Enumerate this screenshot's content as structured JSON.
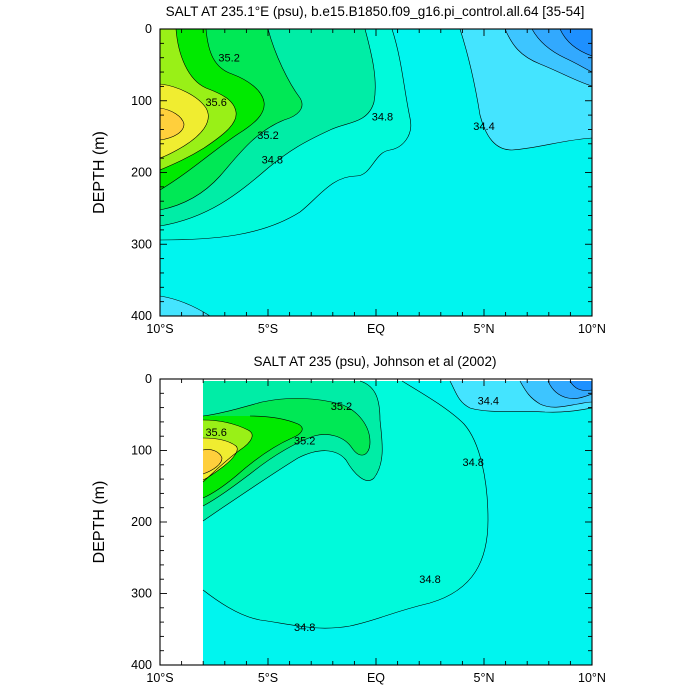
{
  "chart_data": [
    {
      "type": "contour",
      "title": "SALT AT 235.1°E (psu), b.e15.B1850.f09_g16.pi_control.all.64 [35-54]",
      "ylabel": "DEPTH (m)",
      "xlabel": "",
      "xlim": [
        -10,
        10
      ],
      "ylim": [
        400,
        0
      ],
      "y_reversed": true,
      "x_ticks": [
        {
          "value": -10,
          "label": "10°S"
        },
        {
          "value": -5,
          "label": "5°S"
        },
        {
          "value": 0,
          "label": "EQ"
        },
        {
          "value": 5,
          "label": "5°N"
        },
        {
          "value": 10,
          "label": "10°N"
        }
      ],
      "y_ticks": [
        0,
        100,
        200,
        300,
        400
      ],
      "contour_labels": [
        {
          "text": "35.2",
          "lat": -6.8,
          "depth": 40
        },
        {
          "text": "35.6",
          "lat": -7.4,
          "depth": 102
        },
        {
          "text": "35.2",
          "lat": -5.0,
          "depth": 148
        },
        {
          "text": "34.8",
          "lat": -4.8,
          "depth": 182
        },
        {
          "text": "34.8",
          "lat": 0.3,
          "depth": 122
        },
        {
          "text": "34.4",
          "lat": 5.0,
          "depth": 135
        }
      ],
      "colors": {
        "c33_8": "#1e90ff",
        "c34_0": "#32a9fe",
        "c34_2": "#3dc5ff",
        "c34_4": "#44e4ff",
        "c34_6": "#00f5ef",
        "c34_8": "#00fadb",
        "c35_0": "#00eda6",
        "c35_2": "#00e855",
        "c35_4": "#00ea00",
        "c35_6": "#99f017",
        "c35_8": "#f0ed30",
        "c36_0": "#ffcf3c"
      }
    },
    {
      "type": "contour",
      "title": "SALT AT 235 (psu), Johnson et al (2002)",
      "ylabel": "DEPTH (m)",
      "xlabel": "",
      "xlim": [
        -10,
        10
      ],
      "ylim": [
        400,
        0
      ],
      "y_reversed": true,
      "x_ticks": [
        {
          "value": -10,
          "label": "10°S"
        },
        {
          "value": -5,
          "label": "5°S"
        },
        {
          "value": 0,
          "label": "EQ"
        },
        {
          "value": 5,
          "label": "5°N"
        },
        {
          "value": 10,
          "label": "10°N"
        }
      ],
      "y_ticks": [
        0,
        100,
        200,
        300,
        400
      ],
      "data_xmin": -8,
      "contour_labels": [
        {
          "text": "35.2",
          "lat": -1.6,
          "depth": 38
        },
        {
          "text": "35.6",
          "lat": -7.4,
          "depth": 74
        },
        {
          "text": "35.2",
          "lat": -3.3,
          "depth": 86
        },
        {
          "text": "34.8",
          "lat": 4.5,
          "depth": 116
        },
        {
          "text": "34.8",
          "lat": 2.5,
          "depth": 280
        },
        {
          "text": "34.8",
          "lat": -3.3,
          "depth": 347
        },
        {
          "text": "34.4",
          "lat": 5.2,
          "depth": 30
        }
      ],
      "colors": {
        "c33_8": "#1e90ff",
        "c34_0": "#32a9fe",
        "c34_2": "#3dc5ff",
        "c34_4": "#44e4ff",
        "c34_6": "#00f5ef",
        "c34_8": "#00fadb",
        "c35_0": "#00eda6",
        "c35_2": "#00e855",
        "c35_4": "#00ea00",
        "c35_6": "#99f017",
        "c35_8": "#f0ed30",
        "c36_0": "#ffcf3c"
      }
    }
  ]
}
